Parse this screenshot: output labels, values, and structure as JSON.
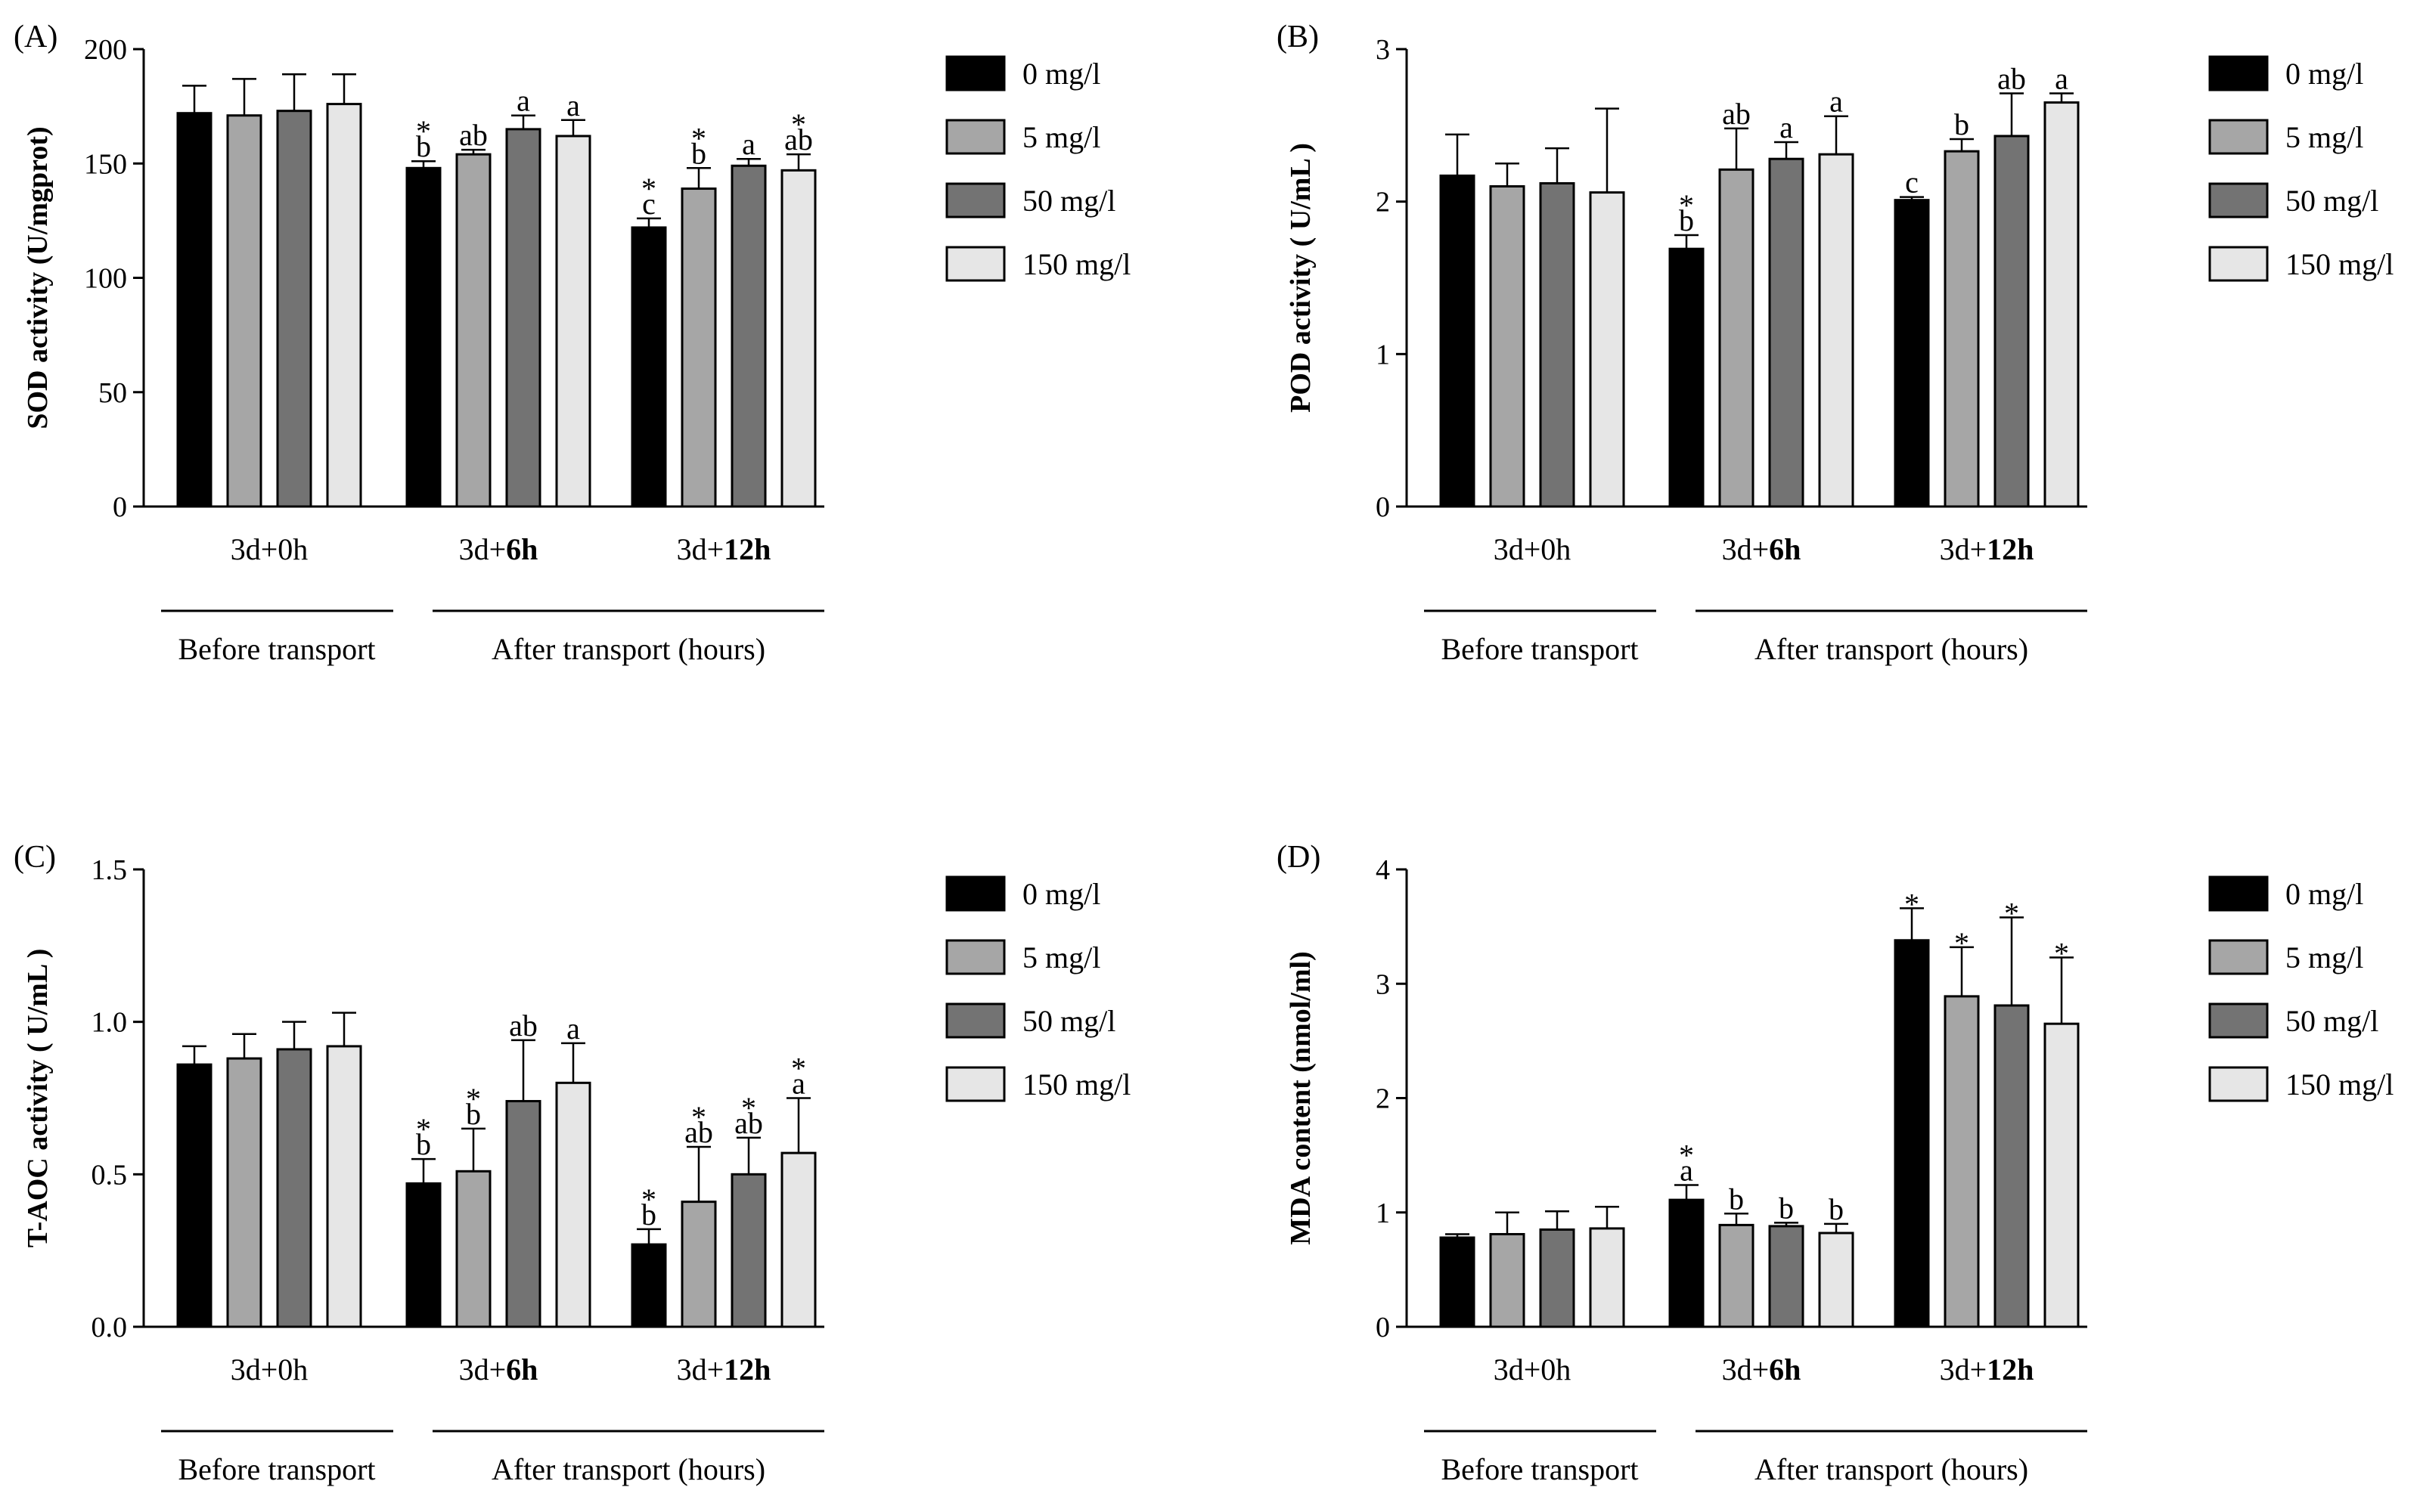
{
  "colors": [
    "#000000",
    "#a6a6a6",
    "#737373",
    "#e6e6e6"
  ],
  "legend": [
    "0 mg/l",
    "5 mg/l",
    "50 mg/l",
    "150 mg/l"
  ],
  "groups": [
    {
      "prefix": "3d+0h",
      "bold": ""
    },
    {
      "prefix": "3d+",
      "bold": "6h"
    },
    {
      "prefix": "3d+",
      "bold": "12h"
    }
  ],
  "brackets": {
    "before": "Before transport",
    "after": "After transport (hours)"
  },
  "chart_data": [
    {
      "type": "bar",
      "panel_label": "(A)",
      "ylabel": "SOD activity (U/mgprot)",
      "ylim": [
        0,
        200
      ],
      "yticks": [
        0,
        50,
        100,
        150,
        200
      ],
      "ytick_labels": [
        "0",
        "50",
        "100",
        "150",
        "200"
      ],
      "categories": [
        "3d+0h",
        "3d+6h",
        "3d+12h"
      ],
      "series": [
        {
          "name": "0 mg/l",
          "values": [
            172,
            148,
            122
          ],
          "errors": [
            12,
            3,
            4
          ],
          "annotations": [
            "",
            "*\nb",
            "*\nc"
          ]
        },
        {
          "name": "5 mg/l",
          "values": [
            171,
            154,
            139
          ],
          "errors": [
            16,
            2,
            9
          ],
          "annotations": [
            "",
            "ab",
            "*\nb"
          ]
        },
        {
          "name": "50 mg/l",
          "values": [
            173,
            165,
            149
          ],
          "errors": [
            16,
            6,
            3
          ],
          "annotations": [
            "",
            "a",
            "a"
          ]
        },
        {
          "name": "150 mg/l",
          "values": [
            176,
            162,
            147
          ],
          "errors": [
            13,
            7,
            7
          ],
          "annotations": [
            "",
            "a",
            "*\nab"
          ]
        }
      ]
    },
    {
      "type": "bar",
      "panel_label": "(B)",
      "ylabel": "POD activity ( U/mL )",
      "ylim": [
        0,
        3
      ],
      "yticks": [
        0,
        1,
        2,
        3
      ],
      "ytick_labels": [
        "0",
        "1",
        "2",
        "3"
      ],
      "categories": [
        "3d+0h",
        "3d+6h",
        "3d+12h"
      ],
      "series": [
        {
          "name": "0 mg/l",
          "values": [
            2.17,
            1.69,
            2.01
          ],
          "errors": [
            0.27,
            0.09,
            0.02
          ],
          "annotations": [
            "",
            "*\nb",
            "c"
          ]
        },
        {
          "name": "5 mg/l",
          "values": [
            2.1,
            2.21,
            2.33
          ],
          "errors": [
            0.15,
            0.27,
            0.08
          ],
          "annotations": [
            "",
            "ab",
            "b"
          ]
        },
        {
          "name": "50 mg/l",
          "values": [
            2.12,
            2.28,
            2.43
          ],
          "errors": [
            0.23,
            0.11,
            0.28
          ],
          "annotations": [
            "",
            "a",
            "ab"
          ]
        },
        {
          "name": "150 mg/l",
          "values": [
            2.06,
            2.31,
            2.65
          ],
          "errors": [
            0.55,
            0.25,
            0.06
          ],
          "annotations": [
            "",
            "a",
            "a"
          ]
        }
      ]
    },
    {
      "type": "bar",
      "panel_label": "(C)",
      "ylabel": "T-AOC activity ( U/mL )",
      "ylim": [
        0,
        1.5
      ],
      "yticks": [
        0,
        0.5,
        1.0,
        1.5
      ],
      "ytick_labels": [
        "0.0",
        "0.5",
        "1.0",
        "1.5"
      ],
      "categories": [
        "3d+0h",
        "3d+6h",
        "3d+12h"
      ],
      "series": [
        {
          "name": "0 mg/l",
          "values": [
            0.86,
            0.47,
            0.27
          ],
          "errors": [
            0.06,
            0.08,
            0.05
          ],
          "annotations": [
            "",
            "*\nb",
            "*\nb"
          ]
        },
        {
          "name": "5 mg/l",
          "values": [
            0.88,
            0.51,
            0.41
          ],
          "errors": [
            0.08,
            0.14,
            0.18
          ],
          "annotations": [
            "",
            "*\nb",
            "*\nab"
          ]
        },
        {
          "name": "50 mg/l",
          "values": [
            0.91,
            0.74,
            0.5
          ],
          "errors": [
            0.09,
            0.2,
            0.12
          ],
          "annotations": [
            "",
            "ab",
            "*\nab"
          ]
        },
        {
          "name": "150 mg/l",
          "values": [
            0.92,
            0.8,
            0.57
          ],
          "errors": [
            0.11,
            0.13,
            0.18
          ],
          "annotations": [
            "",
            "a",
            "*\na"
          ]
        }
      ]
    },
    {
      "type": "bar",
      "panel_label": "(D)",
      "ylabel": "MDA content (nmol/ml)",
      "ylim": [
        0,
        4
      ],
      "yticks": [
        0,
        1,
        2,
        3,
        4
      ],
      "ytick_labels": [
        "0",
        "1",
        "2",
        "3",
        "4"
      ],
      "categories": [
        "3d+0h",
        "3d+6h",
        "3d+12h"
      ],
      "series": [
        {
          "name": "0 mg/l",
          "values": [
            0.78,
            1.11,
            3.38
          ],
          "errors": [
            0.03,
            0.13,
            0.28
          ],
          "annotations": [
            "",
            "*\na",
            "*"
          ]
        },
        {
          "name": "5 mg/l",
          "values": [
            0.81,
            0.89,
            2.89
          ],
          "errors": [
            0.19,
            0.1,
            0.43
          ],
          "annotations": [
            "",
            "b",
            "*"
          ]
        },
        {
          "name": "50 mg/l",
          "values": [
            0.85,
            0.88,
            2.81
          ],
          "errors": [
            0.16,
            0.03,
            0.77
          ],
          "annotations": [
            "",
            "b",
            "*"
          ]
        },
        {
          "name": "150 mg/l",
          "values": [
            0.86,
            0.82,
            2.65
          ],
          "errors": [
            0.19,
            0.08,
            0.58
          ],
          "annotations": [
            "",
            "b",
            "*"
          ]
        }
      ]
    }
  ]
}
